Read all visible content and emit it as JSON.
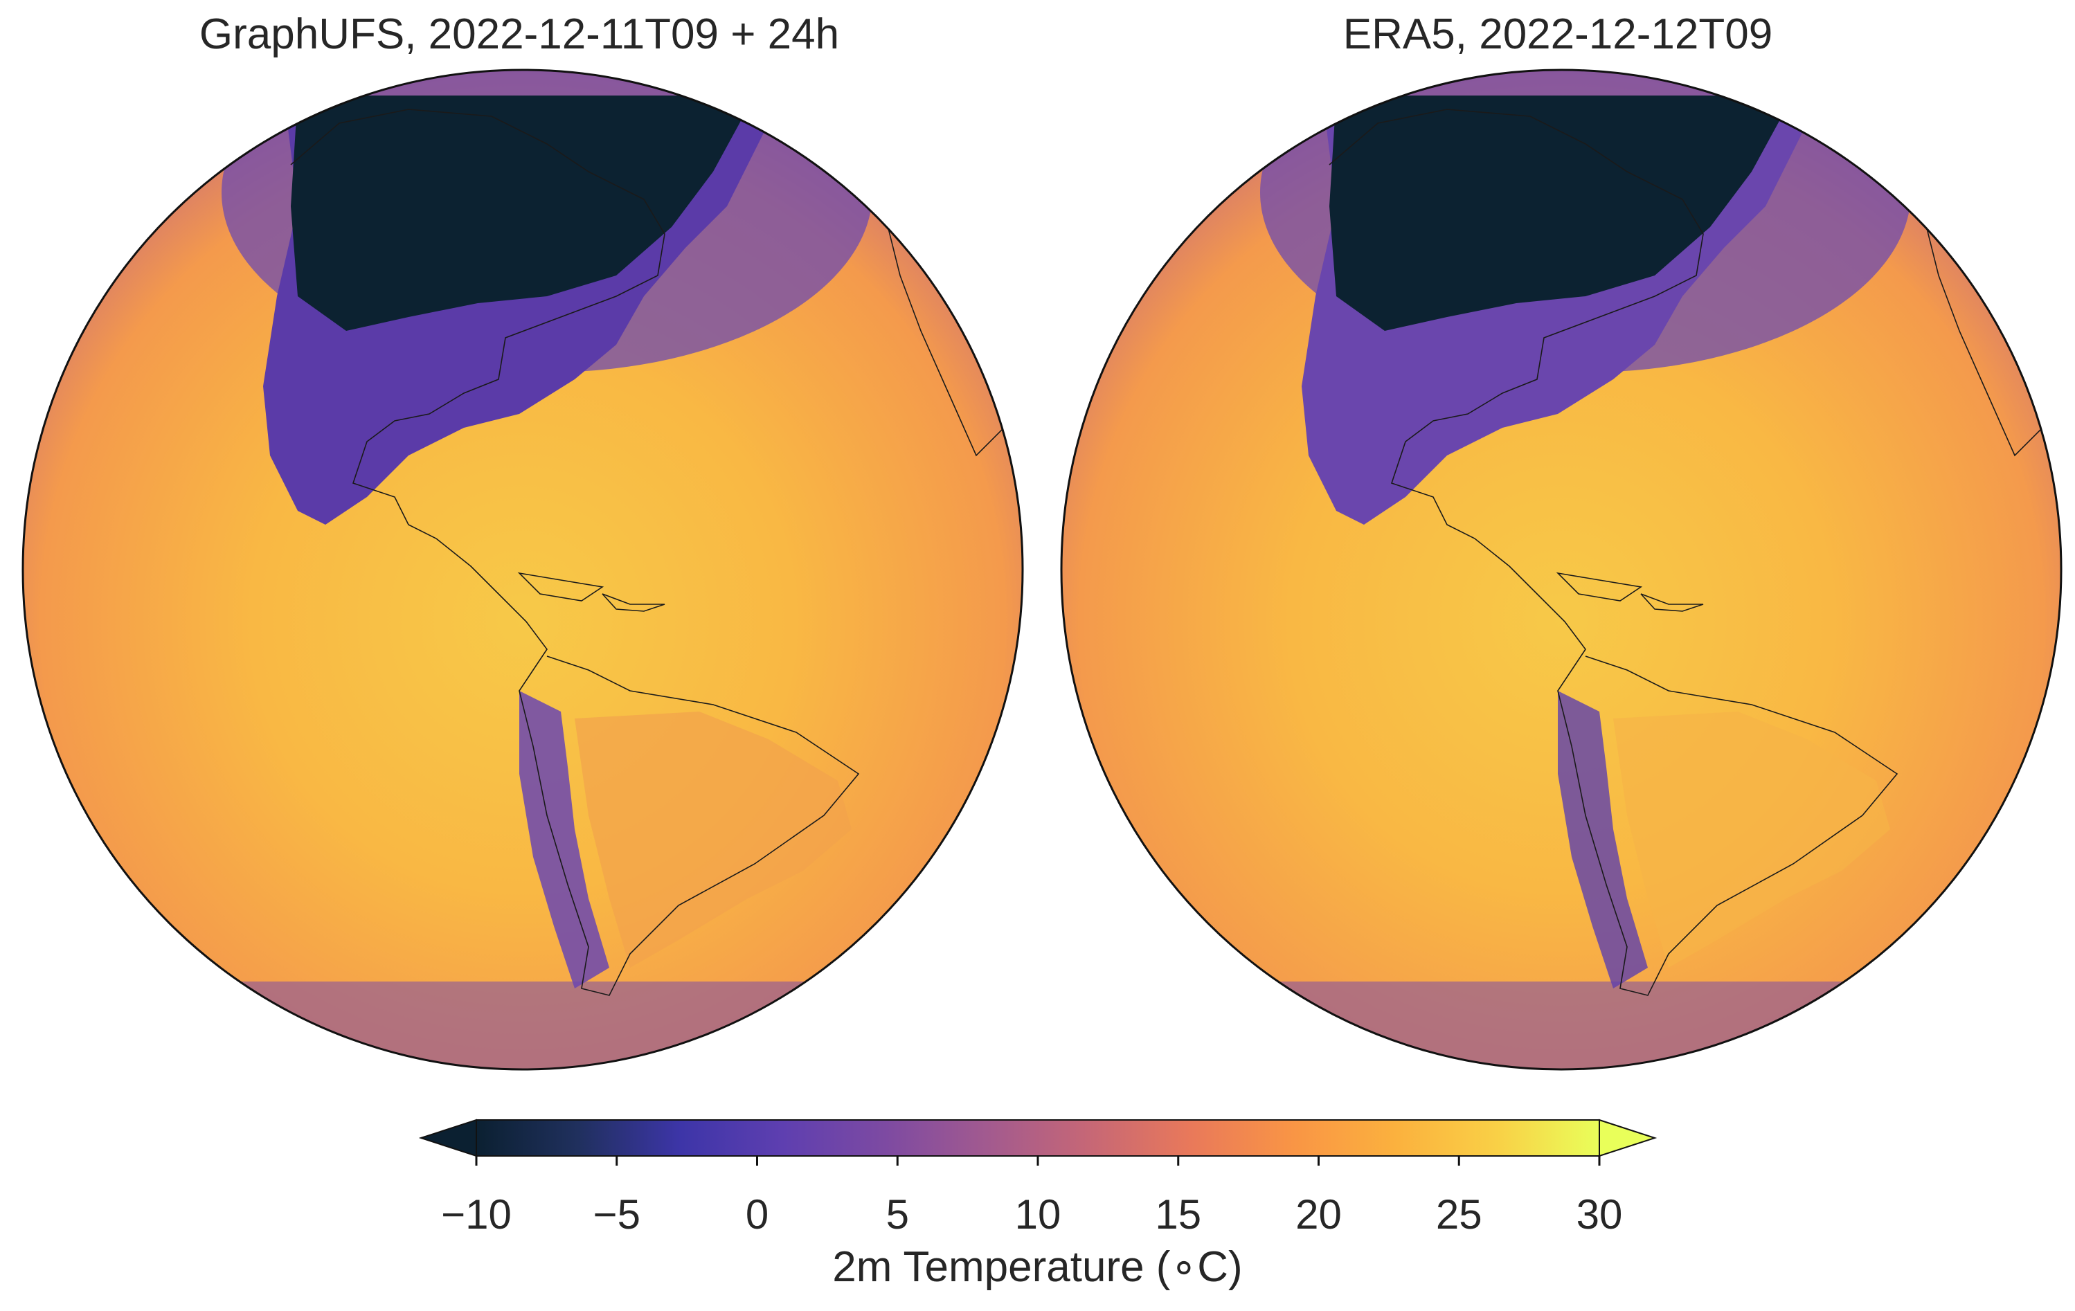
{
  "panels": [
    {
      "title": "GraphUFS, 2022-12-11T09 + 24h"
    },
    {
      "title": "ERA5, 2022-12-12T09"
    }
  ],
  "colorbar": {
    "label": "2m Temperature (∘C)",
    "ticks": [
      "−10",
      "−5",
      "0",
      "5",
      "10",
      "15",
      "20",
      "25",
      "30"
    ],
    "range": [
      -10,
      30
    ],
    "extend": "both",
    "colormap": [
      "#0b2031",
      "#20305e",
      "#3d35a8",
      "#5e3fb0",
      "#7d4aa2",
      "#a25a8f",
      "#c66776",
      "#e9795a",
      "#f99545",
      "#fbb13e",
      "#f9d046",
      "#e9ff5a"
    ]
  }
}
